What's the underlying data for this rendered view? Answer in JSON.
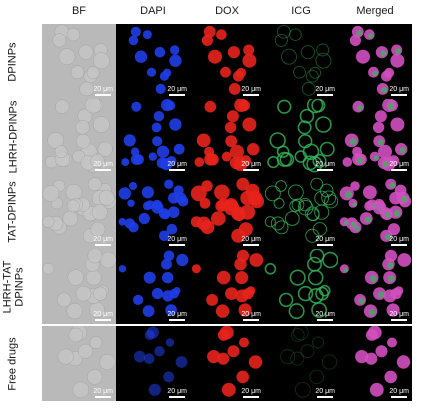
{
  "columns": [
    "BF",
    "DAPI",
    "DOX",
    "ICG",
    "Merged"
  ],
  "rows": [
    {
      "label": "DPINPs",
      "label_lines": [
        "DPINPs"
      ]
    },
    {
      "label": "LHRH-DPINPs",
      "label_lines": [
        "LHRH-DPINPs"
      ]
    },
    {
      "label": "TAT-DPINPs",
      "label_lines": [
        "TAT-DPINPs"
      ]
    },
    {
      "label": "LHRH-TAT DPINPs",
      "label_lines": [
        "LHRH-TAT",
        "DPINPs"
      ]
    },
    {
      "label": "Free drugs",
      "label_lines": [
        "Free drugs"
      ]
    }
  ],
  "scale_bar_label": "20 μm",
  "colors": {
    "bf_background": "#b9b9b9",
    "dapi": "#1f3ee8",
    "dox": "#e8241c",
    "icg": "#33b85a",
    "merged_overlap": "#d24fc0",
    "scale_bar_dark_panel": "#ffffff",
    "scale_bar_bf_panel": "#ffffff"
  }
}
